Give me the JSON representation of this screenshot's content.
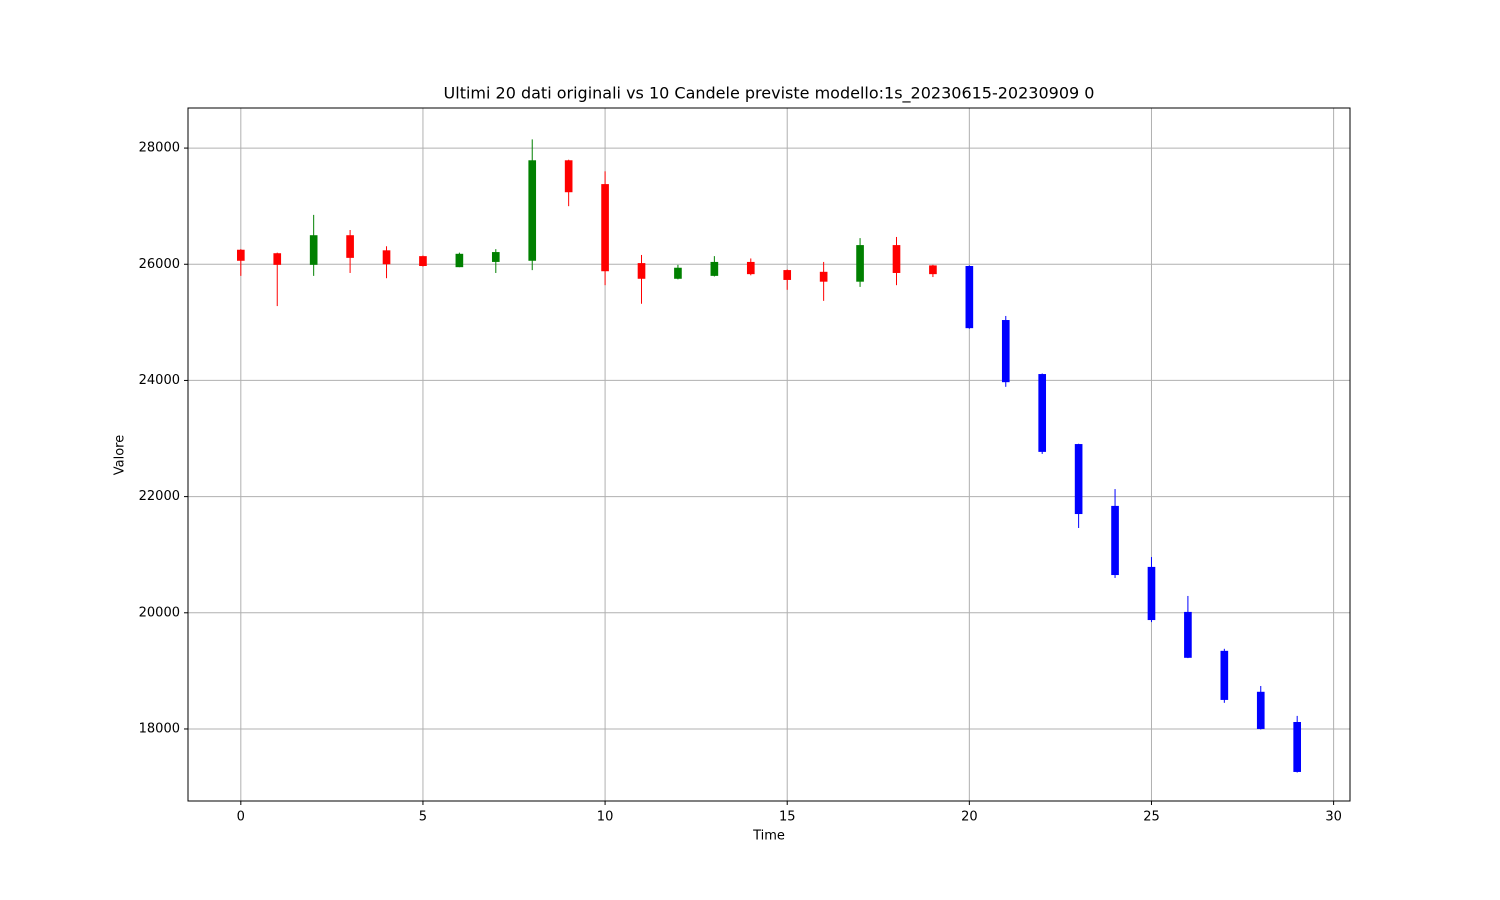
{
  "chart_data": {
    "type": "candlestick",
    "title": "Ultimi 20 dati originali vs 10 Candele previste modello:1s_20230615-20230909 0",
    "x_label": "Time",
    "y_label": "Valore",
    "xlim": [
      -1.45,
      30.45
    ],
    "xticks": [
      0,
      5,
      10,
      15,
      20,
      25,
      30
    ],
    "ylim": [
      16760,
      28690
    ],
    "yticks": [
      18000,
      20000,
      22000,
      24000,
      26000,
      28000
    ],
    "grid": true,
    "series": [
      {
        "up_color": "green",
        "down_color": "red",
        "x": [
          0,
          1,
          2,
          3,
          4,
          5,
          6,
          7,
          8,
          9,
          10,
          11,
          12,
          13,
          14,
          15,
          16,
          17,
          18,
          19
        ],
        "open": [
          26250,
          26190,
          25990,
          26500,
          26240,
          26140,
          25950,
          26040,
          26060,
          27790,
          27380,
          26020,
          25750,
          25800,
          26040,
          25900,
          25870,
          25700,
          26330,
          25980
        ],
        "high": [
          26260,
          26200,
          26850,
          26590,
          26310,
          26150,
          26200,
          26260,
          28150,
          27800,
          27600,
          26160,
          25990,
          26140,
          26100,
          25910,
          26040,
          26450,
          26470,
          25990
        ],
        "low": [
          25800,
          25280,
          25800,
          25850,
          25760,
          25960,
          25950,
          25850,
          25900,
          27000,
          25640,
          25320,
          25740,
          25790,
          25810,
          25560,
          25370,
          25610,
          25640,
          25780
        ],
        "close": [
          26060,
          25990,
          26500,
          26110,
          26000,
          25970,
          26180,
          26210,
          27790,
          27240,
          25880,
          25750,
          25940,
          26040,
          25830,
          25730,
          25700,
          26330,
          25850,
          25830
        ]
      },
      {
        "color": "blue",
        "x": [
          20,
          21,
          22,
          23,
          24,
          25,
          26,
          27,
          28,
          29
        ],
        "open": [
          25970,
          25040,
          24110,
          22905,
          21840,
          20790,
          20015,
          19345,
          18640,
          18120
        ],
        "high": [
          25980,
          25110,
          24120,
          22910,
          22130,
          20960,
          20290,
          19380,
          18740,
          18225
        ],
        "low": [
          24890,
          23890,
          22735,
          21460,
          20600,
          19840,
          19220,
          18450,
          17990,
          17250
        ],
        "close": [
          24900,
          23970,
          22770,
          21700,
          20650,
          19875,
          19225,
          18500,
          18000,
          17260
        ]
      }
    ]
  }
}
